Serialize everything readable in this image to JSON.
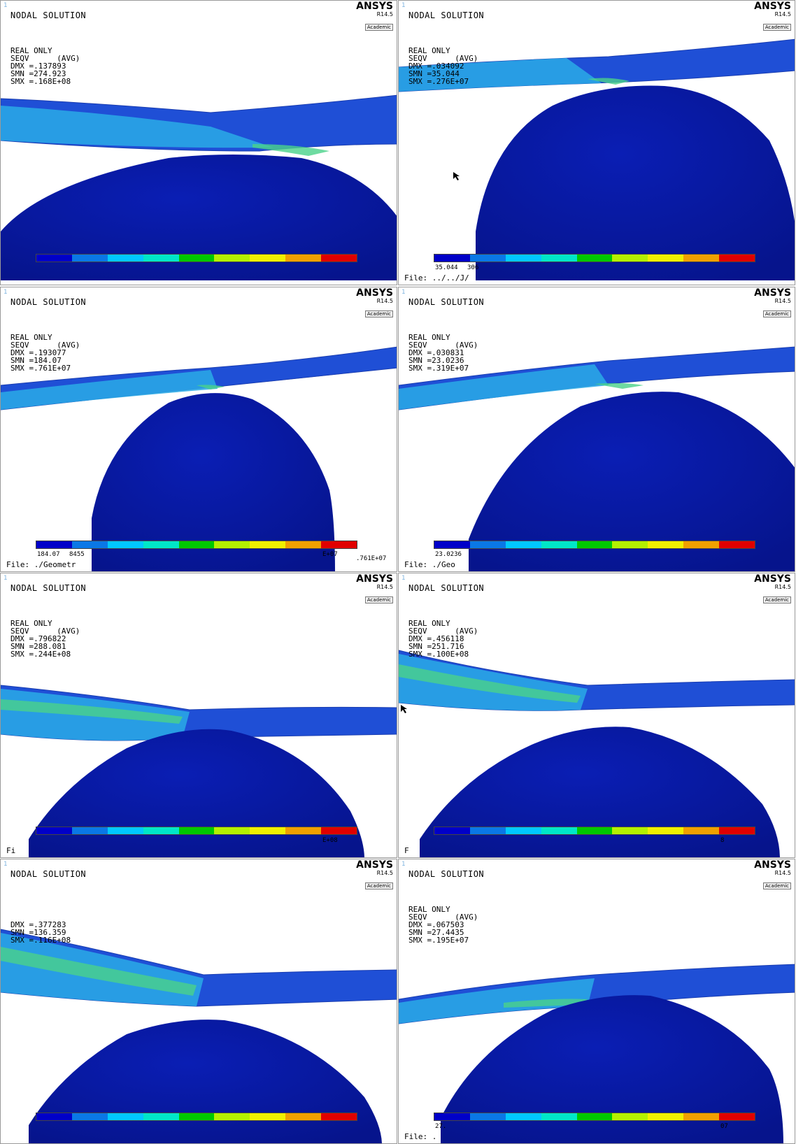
{
  "panels": [
    {
      "title": "NODAL SOLUTION",
      "brand": {
        "name": "ANSYS",
        "version": "R14.5",
        "edition": "Academic"
      },
      "info": [
        "REAL ONLY",
        "SEQV      (AVG)",
        "DMX =.137893",
        "SMN =274.923",
        "SMX =.168E+08"
      ],
      "legend_min": "",
      "legend_mid": "",
      "legend_max": "",
      "file_label": ""
    },
    {
      "title": "NODAL SOLUTION",
      "brand": {
        "name": "ANSYS",
        "version": "R14.5",
        "edition": "Academic"
      },
      "info": [
        "REAL ONLY",
        "SEQV      (AVG)",
        "DMX =.034092",
        "SMN =35.044",
        "SMX =.276E+07"
      ],
      "legend_min": "35.044",
      "legend_mid": "306",
      "legend_max": "",
      "file_label": "File: ../../J/"
    },
    {
      "title": "NODAL SOLUTION",
      "brand": {
        "name": "ANSYS",
        "version": "R14.5",
        "edition": "Academic"
      },
      "info": [
        "REAL ONLY",
        "SEQV      (AVG)",
        "DMX =.193077",
        "SMN =184.07",
        "SMX =.761E+07"
      ],
      "legend_min": "184.07",
      "legend_mid": "8455",
      "legend_max": "E+07",
      "legend_extra": ".761E+07",
      "file_label": "File: ./Geometr"
    },
    {
      "title": "NODAL SOLUTION",
      "brand": {
        "name": "ANSYS",
        "version": "R14.5",
        "edition": "Academic"
      },
      "info": [
        "REAL ONLY",
        "SEQV      (AVG)",
        "DMX =.030831",
        "SMN =23.0236",
        "SMX =.319E+07"
      ],
      "legend_min": "23.0236",
      "legend_mid": "",
      "legend_max": "",
      "file_label": "File: ./Geo"
    },
    {
      "title": "NODAL SOLUTION",
      "brand": {
        "name": "ANSYS",
        "version": "R14.5",
        "edition": "Academic"
      },
      "info": [
        "REAL ONLY",
        "SEQV      (AVG)",
        "DMX =.796822",
        "SMN =288.081",
        "SMX =.244E+08"
      ],
      "legend_min": "",
      "legend_mid": "",
      "legend_max": "E+08",
      "file_label": "Fi"
    },
    {
      "title": "NODAL SOLUTION",
      "brand": {
        "name": "ANSYS",
        "version": "R14.5",
        "edition": "Academic"
      },
      "info": [
        "REAL ONLY",
        "SEQV      (AVG)",
        "DMX =.456118",
        "SMN =251.716",
        "SMX =.100E+08"
      ],
      "legend_min": "",
      "legend_mid": "",
      "legend_max": "8",
      "file_label": "F"
    },
    {
      "title": "NODAL SOLUTION",
      "brand": {
        "name": "ANSYS",
        "version": "R14.5",
        "edition": "Academic"
      },
      "info": [
        "",
        "",
        "DMX =.377283",
        "SMN =136.359",
        "SMX =.116E+08"
      ],
      "legend_min": "",
      "legend_mid": "",
      "legend_max": "",
      "file_label": ""
    },
    {
      "title": "NODAL SOLUTION",
      "brand": {
        "name": "ANSYS",
        "version": "R14.5",
        "edition": "Academic"
      },
      "info": [
        "REAL ONLY",
        "SEQV      (AVG)",
        "DMX =.067503",
        "SMN =27.4435",
        "SMX =.195E+07"
      ],
      "legend_min": "27.",
      "legend_mid": "",
      "legend_max": "07",
      "file_label": "File: ."
    }
  ],
  "legend_colors": [
    "#0000c8",
    "#0a78e6",
    "#00c8ff",
    "#00e6c8",
    "#00c800",
    "#b4f000",
    "#f0f000",
    "#f0a000",
    "#e00000"
  ],
  "colors": {
    "sphere": "#0a1eb4",
    "sphere_shade": "#06148c",
    "beam": "#1f4fd6",
    "beam_light": "#2aaae6",
    "beam_green": "#4ad28a"
  }
}
